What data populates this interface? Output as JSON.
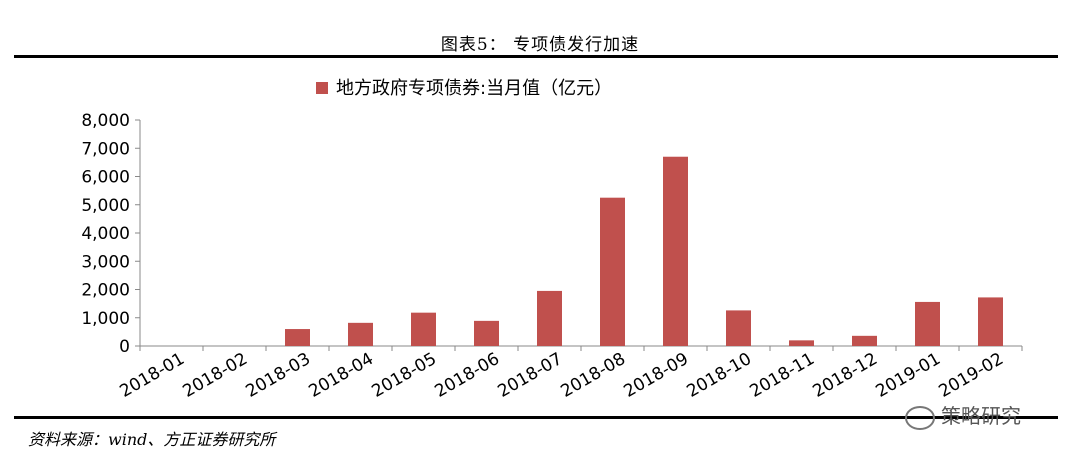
{
  "figure_title": "图表5：  专项债发行加速",
  "source": "资料来源：wind、方正证券研究所",
  "watermark": "策略研究",
  "chart_data": {
    "type": "bar",
    "title": "",
    "xlabel": "",
    "ylabel": "",
    "legend_position": "top",
    "ylim": [
      0,
      8000
    ],
    "y_ticks": [
      "0",
      "1,000",
      "2,000",
      "3,000",
      "4,000",
      "5,000",
      "6,000",
      "7,000",
      "8,000"
    ],
    "categories": [
      "2018-01",
      "2018-02",
      "2018-03",
      "2018-04",
      "2018-05",
      "2018-06",
      "2018-07",
      "2018-08",
      "2018-09",
      "2018-10",
      "2018-11",
      "2018-12",
      "2019-01",
      "2019-02"
    ],
    "series": [
      {
        "name": "地方政府专项债券:当月值（亿元）",
        "color": "#c0504d",
        "values": [
          0,
          0,
          600,
          820,
          1180,
          890,
          1950,
          5250,
          6700,
          1260,
          200,
          360,
          1560,
          1720
        ]
      }
    ]
  }
}
